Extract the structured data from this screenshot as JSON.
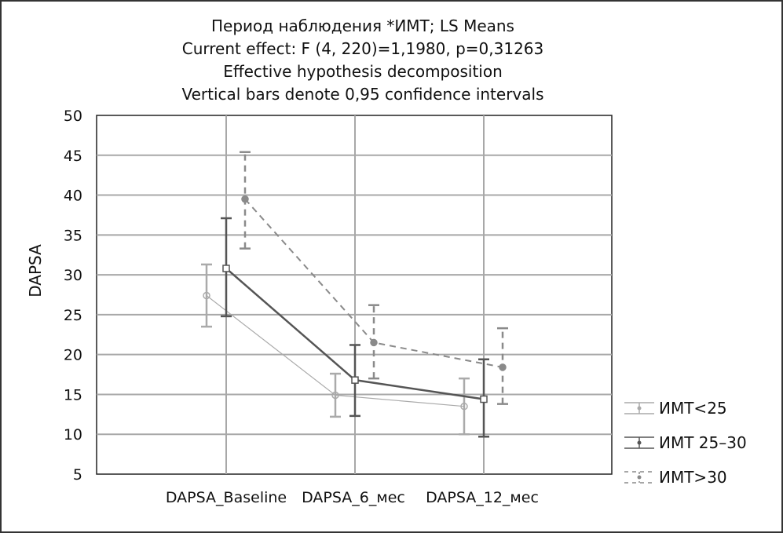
{
  "chart_data": {
    "type": "line",
    "title_lines": [
      "Период наблюдения *ИМТ; LS Means",
      "Current effect: F (4, 220)=1,1980, p=0,31263",
      "Effective hypothesis decomposition",
      "Vertical bars denote 0,95 confidence intervals"
    ],
    "xlabel": "",
    "ylabel": "DAPSA",
    "ylim": [
      5,
      50
    ],
    "yticks": [
      5,
      10,
      15,
      20,
      25,
      30,
      35,
      40,
      45,
      50
    ],
    "categories": [
      "DAPSA_Baseline",
      "DAPSA_6_мес",
      "DAPSA_12_мес"
    ],
    "grid": true,
    "legend_position": "right-bottom",
    "series": [
      {
        "name": "ИМТ<25",
        "color": "#aaaaaa",
        "dash": false,
        "marker": "circle",
        "values": [
          27.4,
          14.9,
          13.5
        ],
        "ci_low": [
          23.5,
          12.2,
          10.0
        ],
        "ci_high": [
          31.3,
          17.6,
          17.0
        ]
      },
      {
        "name": "ИМТ 25–30",
        "color": "#555555",
        "dash": false,
        "marker": "square",
        "values": [
          30.8,
          16.8,
          14.4
        ],
        "ci_low": [
          24.8,
          12.3,
          9.7
        ],
        "ci_high": [
          37.1,
          21.2,
          19.4
        ]
      },
      {
        "name": "ИМТ>30",
        "color": "#8a8a8a",
        "dash": true,
        "marker": "circle",
        "values": [
          39.5,
          21.5,
          18.4
        ],
        "ci_low": [
          33.3,
          17.0,
          13.8
        ],
        "ci_high": [
          45.4,
          26.2,
          23.3
        ]
      }
    ]
  }
}
